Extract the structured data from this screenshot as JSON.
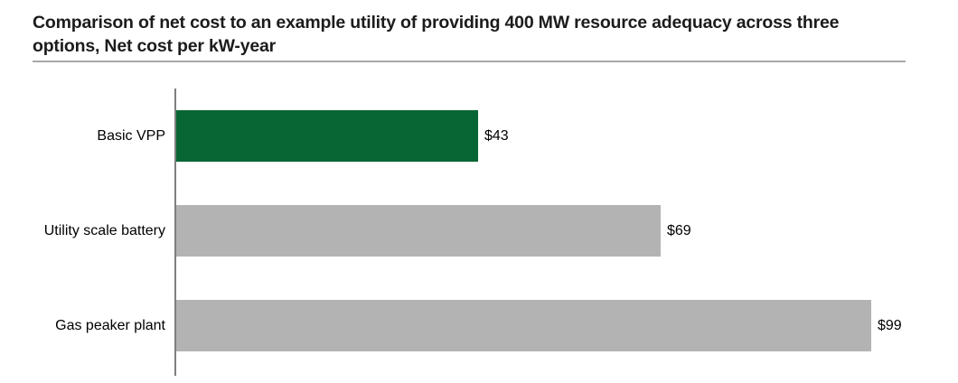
{
  "header": {
    "title_line1": "Comparison of net cost to an example utility of providing 400 MW resource adequacy across three",
    "title_line2": "options, Net cost per kW-year"
  },
  "chart_data": {
    "type": "bar",
    "orientation": "horizontal",
    "title": "Comparison of net cost to an example utility of providing 400 MW resource adequacy across three options, Net cost per kW-year",
    "categories": [
      "Basic VPP",
      "Utility scale battery",
      "Gas peaker plant"
    ],
    "values": [
      43,
      69,
      99
    ],
    "value_labels": [
      "$43",
      "$69",
      "$99"
    ],
    "bar_colors": [
      "#076633",
      "#b3b3b3",
      "#b3b3b3"
    ],
    "xlim": [
      0,
      106
    ],
    "grid": false,
    "legend": false
  },
  "colors": {
    "accent_green": "#076633",
    "bar_gray": "#b3b3b3",
    "axis_line": "#7f7f7f",
    "title_rule": "#a8a8a8",
    "text": "#000000",
    "title_text": "#1c1c1c"
  }
}
